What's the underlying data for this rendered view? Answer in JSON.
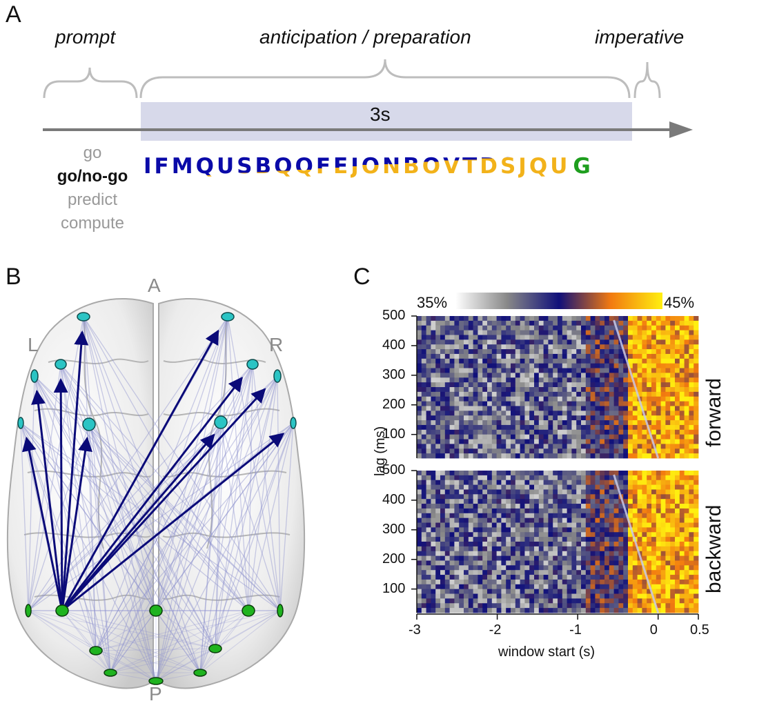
{
  "panelA": {
    "letter": "A",
    "phases": {
      "prompt": "prompt",
      "anticipation": "anticipation / preparation",
      "imperative": "imperative"
    },
    "duration_label": "3s",
    "conditions": [
      {
        "label": "go",
        "active": false
      },
      {
        "label": "go/no-go",
        "active": true
      },
      {
        "label": "predict",
        "active": false
      },
      {
        "label": "compute",
        "active": false
      }
    ],
    "letters": [
      "I",
      "F",
      "M",
      "Q",
      "U",
      "S",
      "B",
      "Q",
      "Q",
      "F",
      "E",
      "J",
      "O",
      "N",
      "B",
      "O",
      "V",
      "T",
      "D",
      "S",
      "J",
      "Q",
      "U"
    ],
    "imperative_letter": "G",
    "colors": {
      "blue": "#0a0aa8",
      "gold": "#f2b21a",
      "green": "#1e9e1e",
      "window": "#d7d9ea",
      "brace": "#bdbdbd"
    }
  },
  "panelB": {
    "letter": "B",
    "labels": {
      "anterior": "A",
      "posterior": "P",
      "left": "L",
      "right": "R"
    },
    "colors": {
      "frontal": "#2bc4c4",
      "occipital": "#1fb31f",
      "arrow": "#0a0a78",
      "faint": "#8f93cf"
    }
  },
  "panelC": {
    "letter": "C",
    "colorbar": {
      "min_label": "35%",
      "max_label": "45%"
    },
    "ylabel": "lag (ms)",
    "xlabel": "window start (s)",
    "xticks": [
      "-3",
      "-2",
      "-1",
      "0",
      "0.5"
    ],
    "yticks": [
      "500",
      "400",
      "300",
      "200",
      "100"
    ],
    "panels": [
      {
        "label": "forward"
      },
      {
        "label": "backward"
      }
    ]
  },
  "chart_data": {
    "type": "heatmap",
    "xlabel": "window start (s)",
    "ylabel": "lag (ms)",
    "xlim": [
      -3,
      0.5
    ],
    "ylim": [
      20,
      500
    ],
    "clim": [
      35,
      45
    ],
    "colorbar_label_min": "35%",
    "colorbar_label_max": "45%",
    "series": [
      {
        "name": "forward"
      },
      {
        "name": "backward"
      }
    ],
    "note_values": "cells near 38-41% across window starts -3 to -0.5 s; elevated 42-45% for window starts after about -0.4 s"
  }
}
